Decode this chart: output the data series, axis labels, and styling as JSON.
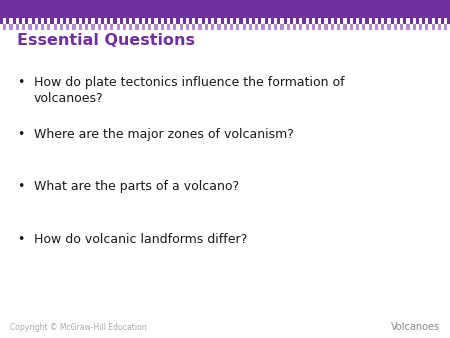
{
  "title": "Essential Questions",
  "title_color": "#7030a0",
  "title_fontsize": 11.5,
  "bullets": [
    "How do plate tectonics influence the formation of\nvolcanoes?",
    "Where are the major zones of volcanism?",
    "What are the parts of a volcano?",
    "How do volcanic landforms differ?"
  ],
  "bullet_fontsize": 9,
  "bullet_color": "#1a1a1a",
  "background_color": "#ffffff",
  "header_solid_color": "#7030a0",
  "header_checker_color": "#7030a0",
  "footer_text_left": "Copyright © McGraw-Hill Education",
  "footer_text_right": "Volcanoes",
  "footer_fontsize": 5.5,
  "footer_color": "#aaaaaa",
  "footer_right_color": "#888888"
}
